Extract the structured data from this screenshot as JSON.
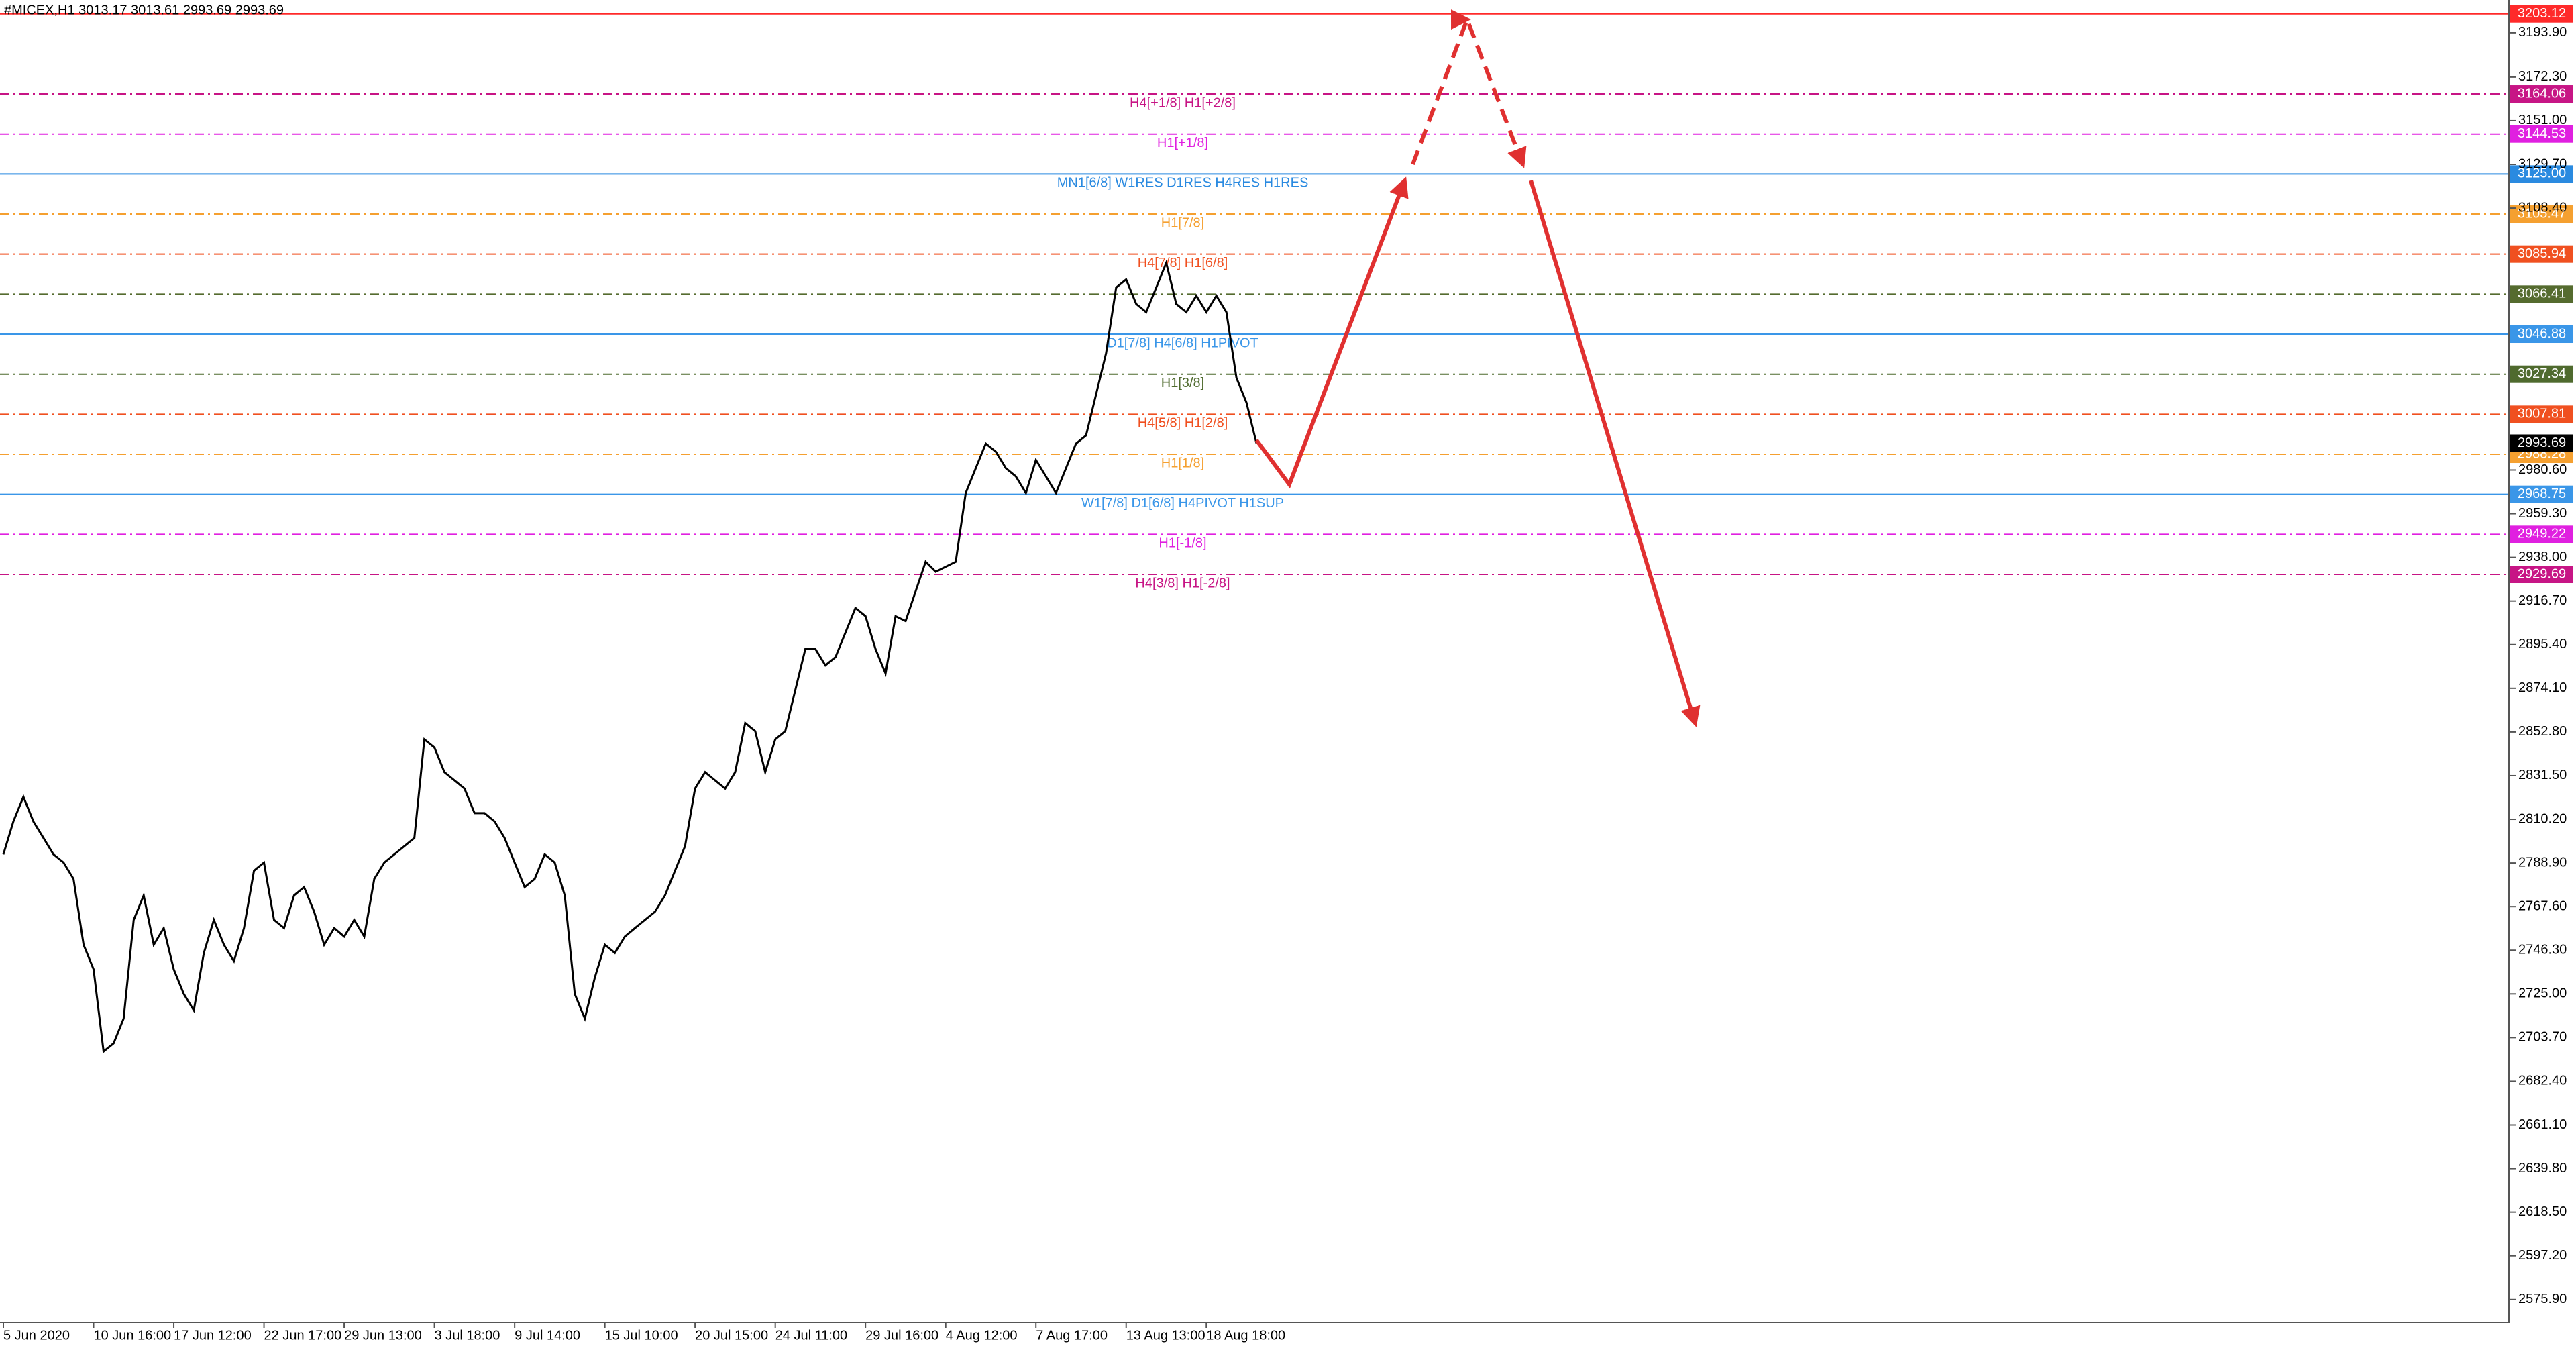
{
  "chart_data": {
    "type": "line",
    "title": "#MICEX,H1  3013.17 3013.61 2993.69 2993.69",
    "categories": [
      "5 Jun 2020",
      null,
      null,
      null,
      null,
      null,
      null,
      null,
      null,
      "10 Jun 16:00",
      null,
      null,
      null,
      null,
      null,
      null,
      null,
      "17 Jun 12:00",
      null,
      null,
      null,
      null,
      null,
      null,
      null,
      null,
      "22 Jun 17:00",
      null,
      null,
      null,
      null,
      null,
      null,
      null,
      "29 Jun 13:00",
      null,
      null,
      null,
      null,
      null,
      null,
      null,
      null,
      "3 Jul 18:00",
      null,
      null,
      null,
      null,
      null,
      null,
      null,
      "9 Jul 14:00",
      null,
      null,
      null,
      null,
      null,
      null,
      null,
      null,
      "15 Jul 10:00",
      null,
      null,
      null,
      null,
      null,
      null,
      null,
      null,
      "20 Jul 15:00",
      null,
      null,
      null,
      null,
      null,
      null,
      null,
      "24 Jul 11:00",
      null,
      null,
      null,
      null,
      null,
      null,
      null,
      null,
      "29 Jul 16:00",
      null,
      null,
      null,
      null,
      null,
      null,
      null,
      "4 Aug 12:00",
      null,
      null,
      null,
      null,
      null,
      null,
      null,
      null,
      "7 Aug 17:00",
      null,
      null,
      null,
      null,
      null,
      null,
      null,
      null,
      "13 Aug 13:00",
      null,
      null,
      null,
      null,
      null,
      null,
      null,
      "18 Aug 18:00",
      null,
      null,
      null,
      null,
      null
    ],
    "series": [
      {
        "name": "#MICEX,H1",
        "color": "#000000",
        "values": [
          2793.1,
          2809.1,
          2821.2,
          2809.1,
          2801.1,
          2793.1,
          2789.1,
          2781.1,
          2749.0,
          2737.0,
          2696.9,
          2700.9,
          2713.0,
          2761.1,
          2773.1,
          2749.0,
          2757.1,
          2737.0,
          2725.0,
          2717.0,
          2745.0,
          2761.1,
          2749.0,
          2741.0,
          2757.1,
          2785.1,
          2789.1,
          2761.1,
          2757.1,
          2773.1,
          2777.1,
          2765.1,
          2749.0,
          2757.1,
          2753.0,
          2761.1,
          2753.0,
          2781.1,
          2789.1,
          2793.1,
          2797.1,
          2801.1,
          2849.2,
          2845.2,
          2833.2,
          2829.2,
          2825.2,
          2813.2,
          2813.2,
          2809.1,
          2801.1,
          2789.1,
          2777.1,
          2781.1,
          2793.1,
          2789.1,
          2773.1,
          2725.0,
          2713.0,
          2733.0,
          2749.0,
          2745.0,
          2753.0,
          2757.1,
          2761.1,
          2765.1,
          2773.1,
          2785.1,
          2797.1,
          2825.2,
          2833.2,
          2829.2,
          2825.2,
          2833.2,
          2857.2,
          2853.2,
          2833.2,
          2849.2,
          2853.2,
          2873.3,
          2893.3,
          2893.3,
          2885.3,
          2889.3,
          2901.3,
          2913.3,
          2909.3,
          2893.3,
          2881.3,
          2909.3,
          2906.9,
          2921.4,
          2935.8,
          2931.0,
          2933.4,
          2935.8,
          2969.4,
          2981.5,
          2993.5,
          2989.5,
          2981.5,
          2977.5,
          2969.4,
          2985.5,
          2977.5,
          2969.4,
          2981.5,
          2993.5,
          2997.5,
          3017.5,
          3037.6,
          3069.6,
          3073.6,
          3061.6,
          3057.6,
          3069.6,
          3081.7,
          3061.6,
          3057.6,
          3065.6,
          3057.6,
          3065.6,
          3057.6,
          3025.6,
          3013.5,
          2993.69
        ]
      }
    ],
    "ylim": [
      2564.7,
      3209.9
    ],
    "yticks": [
      {
        "value": 3193.9,
        "label": "3193.90"
      },
      {
        "value": 3172.3,
        "label": "3172.30"
      },
      {
        "value": 3151,
        "label": "3151.00"
      },
      {
        "value": 3129.7,
        "label": "3129.70"
      },
      {
        "value": 3108.4,
        "label": "3108.40"
      },
      {
        "value": 2980.6,
        "label": "2980.60"
      },
      {
        "value": 2959.3,
        "label": "2959.30"
      },
      {
        "value": 2938,
        "label": "2938.00"
      },
      {
        "value": 2916.7,
        "label": "2916.70"
      },
      {
        "value": 2895.4,
        "label": "2895.40"
      },
      {
        "value": 2874.1,
        "label": "2874.10"
      },
      {
        "value": 2852.8,
        "label": "2852.80"
      },
      {
        "value": 2831.5,
        "label": "2831.50"
      },
      {
        "value": 2810.2,
        "label": "2810.20"
      },
      {
        "value": 2788.9,
        "label": "2788.90"
      },
      {
        "value": 2767.6,
        "label": "2767.60"
      },
      {
        "value": 2746.3,
        "label": "2746.30"
      },
      {
        "value": 2725,
        "label": "2725.00"
      },
      {
        "value": 2703.7,
        "label": "2703.70"
      },
      {
        "value": 2682.4,
        "label": "2682.40"
      },
      {
        "value": 2661.1,
        "label": "2661.10"
      },
      {
        "value": 2639.8,
        "label": "2639.80"
      },
      {
        "value": 2618.5,
        "label": "2618.50"
      },
      {
        "value": 2597.2,
        "label": "2597.20"
      },
      {
        "value": 2575.9,
        "label": "2575.90"
      }
    ],
    "levels": [
      {
        "value": 3203.12,
        "color": "#ff2a2a",
        "style": "solid"
      },
      {
        "value": 3164.06,
        "color": "#c71585",
        "style": "dashdot",
        "label": "H4[+1/8] H1[+2/8]"
      },
      {
        "value": 3144.53,
        "color": "#e020e0",
        "style": "dashdot",
        "label": "H1[+1/8]"
      },
      {
        "value": 3125,
        "value_label": "3125.00",
        "color": "#2a8ae0",
        "style": "solid",
        "label": "MN1[6/8] W1RES D1RES H4RES H1RES"
      },
      {
        "value": 3105.47,
        "color": "#f5a030",
        "style": "dashdot",
        "label": "H1[7/8]"
      },
      {
        "value": 3085.94,
        "color": "#f05020",
        "style": "dashdot",
        "label": "H4[7/8] H1[6/8]"
      },
      {
        "value": 3066.41,
        "color": "#556b2f",
        "style": "dashdot"
      },
      {
        "value": 3046.88,
        "color": "#3a96e8",
        "style": "solid",
        "label": "D1[7/8] H4[6/8] H1PIVOT"
      },
      {
        "value": 3027.34,
        "color": "#4f6a2e",
        "style": "dashdot",
        "label": "H1[3/8]"
      },
      {
        "value": 3007.81,
        "color": "#f05020",
        "style": "dashdot",
        "label": "H4[5/8] H1[2/8]"
      },
      {
        "value": 2988.28,
        "color": "#f5a030",
        "style": "dashdot",
        "label": "H1[1/8]"
      },
      {
        "value": 2968.75,
        "color": "#3a96e8",
        "style": "solid",
        "label": "W1[7/8] D1[6/8] H4PIVOT H1SUP"
      },
      {
        "value": 2949.22,
        "color": "#e020e0",
        "style": "dashdot",
        "label": "H1[-1/8]"
      },
      {
        "value": 2929.69,
        "color": "#c71585",
        "style": "dashdot",
        "label": "H4[3/8] H1[-2/8]"
      }
    ],
    "current_price": 2993.69
  }
}
